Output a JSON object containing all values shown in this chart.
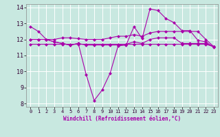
{
  "xlabel": "Windchill (Refroidissement éolien,°C)",
  "xlim": [
    -0.5,
    23.5
  ],
  "ylim": [
    7.8,
    14.2
  ],
  "yticks": [
    8,
    9,
    10,
    11,
    12,
    13,
    14
  ],
  "xticks": [
    0,
    1,
    2,
    3,
    4,
    5,
    6,
    7,
    8,
    9,
    10,
    11,
    12,
    13,
    14,
    15,
    16,
    17,
    18,
    19,
    20,
    21,
    22,
    23
  ],
  "background_color": "#c8e8e0",
  "grid_color": "#ffffff",
  "line_color": "#aa00aa",
  "series_main": [
    12.8,
    12.5,
    12.0,
    11.85,
    11.75,
    11.65,
    11.75,
    9.8,
    8.2,
    8.85,
    9.9,
    11.6,
    11.65,
    12.8,
    12.05,
    13.9,
    13.8,
    13.3,
    13.05,
    12.55,
    12.55,
    11.95,
    11.85,
    11.5
  ],
  "series_upper": [
    12.0,
    12.0,
    12.0,
    12.0,
    12.1,
    12.1,
    12.05,
    12.0,
    12.0,
    12.0,
    12.1,
    12.2,
    12.2,
    12.3,
    12.2,
    12.4,
    12.5,
    12.5,
    12.5,
    12.5,
    12.5,
    12.5,
    12.0,
    11.55
  ],
  "series_mid": [
    12.0,
    12.0,
    12.0,
    11.85,
    11.75,
    11.65,
    11.75,
    11.65,
    11.65,
    11.65,
    11.65,
    11.65,
    11.7,
    11.85,
    11.75,
    12.0,
    12.1,
    12.1,
    12.1,
    11.75,
    11.75,
    11.75,
    11.75,
    11.55
  ],
  "series_flat": [
    11.7,
    11.7,
    11.7,
    11.7,
    11.7,
    11.7,
    11.7,
    11.7,
    11.7,
    11.7,
    11.7,
    11.7,
    11.7,
    11.7,
    11.7,
    11.7,
    11.7,
    11.7,
    11.7,
    11.7,
    11.7,
    11.7,
    11.7,
    11.55
  ]
}
